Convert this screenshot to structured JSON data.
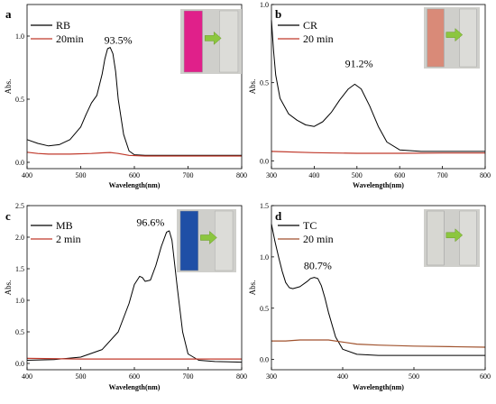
{
  "chart_data": [
    {
      "type": "line",
      "panel": "a",
      "xlabel": "Wavelength(nm)",
      "ylabel": "Abs.",
      "xlim": [
        400,
        800
      ],
      "ylim": [
        -0.05,
        1.25
      ],
      "xticks": [
        400,
        500,
        600,
        700,
        800
      ],
      "yticks": [
        0.0,
        0.5,
        1.0
      ],
      "yticklabels": [
        "0.0",
        "0.5",
        "1.0"
      ],
      "annotation": {
        "text": "93.5%",
        "x": 570,
        "y": 0.94
      },
      "legend_position": "top-left",
      "inset_image": "vial-photo-before-after",
      "colors": {
        "before": "#000000",
        "after": "#c0392b",
        "vial_before": "#e0208a",
        "arrow": "#8cc63f"
      },
      "series": [
        {
          "name": "RB",
          "color": "#000000",
          "x": [
            400,
            420,
            440,
            460,
            480,
            500,
            510,
            520,
            530,
            540,
            545,
            550,
            555,
            560,
            565,
            570,
            580,
            590,
            600,
            620,
            650,
            700,
            750,
            800
          ],
          "y": [
            0.18,
            0.15,
            0.13,
            0.14,
            0.18,
            0.28,
            0.38,
            0.47,
            0.53,
            0.7,
            0.82,
            0.9,
            0.91,
            0.86,
            0.72,
            0.5,
            0.22,
            0.09,
            0.06,
            0.055,
            0.055,
            0.055,
            0.055,
            0.055
          ]
        },
        {
          "name": "20min",
          "color": "#c0392b",
          "x": [
            400,
            420,
            440,
            480,
            520,
            540,
            555,
            570,
            590,
            620,
            700,
            800
          ],
          "y": [
            0.08,
            0.07,
            0.065,
            0.065,
            0.07,
            0.075,
            0.078,
            0.07,
            0.055,
            0.05,
            0.05,
            0.05
          ]
        }
      ]
    },
    {
      "type": "line",
      "panel": "b",
      "xlabel": "Wavelength(nm)",
      "ylabel": "Abs.",
      "xlim": [
        300,
        800
      ],
      "ylim": [
        -0.05,
        1.0
      ],
      "xticks": [
        300,
        400,
        500,
        600,
        700,
        800
      ],
      "yticks": [
        0.0,
        0.5,
        1.0
      ],
      "yticklabels": [
        "0.0",
        "0.5",
        "1.0"
      ],
      "annotation": {
        "text": "91.2%",
        "x": 505,
        "y": 0.6
      },
      "legend_position": "top-left",
      "inset_image": "vial-photo-before-after",
      "colors": {
        "before": "#000000",
        "after": "#c0392b",
        "vial_before": "#d98a78",
        "arrow": "#8cc63f"
      },
      "series": [
        {
          "name": "CR",
          "color": "#000000",
          "x": [
            300,
            305,
            310,
            320,
            340,
            360,
            380,
            400,
            420,
            440,
            460,
            480,
            495,
            510,
            530,
            550,
            570,
            600,
            650,
            700,
            800
          ],
          "y": [
            0.9,
            0.7,
            0.55,
            0.4,
            0.3,
            0.26,
            0.23,
            0.22,
            0.25,
            0.31,
            0.39,
            0.46,
            0.49,
            0.46,
            0.35,
            0.22,
            0.12,
            0.07,
            0.06,
            0.06,
            0.06
          ]
        },
        {
          "name": "20 min",
          "color": "#c0392b",
          "x": [
            300,
            400,
            500,
            600,
            700,
            800
          ],
          "y": [
            0.06,
            0.052,
            0.048,
            0.048,
            0.05,
            0.05
          ]
        }
      ]
    },
    {
      "type": "line",
      "panel": "c",
      "xlabel": "Wavelength(nm)",
      "ylabel": "Abs.",
      "xlim": [
        400,
        800
      ],
      "ylim": [
        -0.1,
        2.5
      ],
      "xticks": [
        400,
        500,
        600,
        700,
        800
      ],
      "yticks": [
        0.0,
        0.5,
        1.0,
        1.5,
        2.0,
        2.5
      ],
      "yticklabels": [
        "0.0",
        "0.5",
        "1.0",
        "1.5",
        "2.0",
        "2.5"
      ],
      "annotation": {
        "text": "96.6%",
        "x": 630,
        "y": 2.18
      },
      "legend_position": "top-left",
      "inset_image": "vial-photo-before-after",
      "colors": {
        "before": "#000000",
        "after": "#c0392b",
        "vial_before": "#1f4fa6",
        "arrow": "#8cc63f"
      },
      "series": [
        {
          "name": "MB",
          "color": "#000000",
          "x": [
            400,
            450,
            500,
            540,
            570,
            590,
            600,
            610,
            615,
            620,
            630,
            640,
            650,
            660,
            665,
            670,
            680,
            690,
            700,
            720,
            750,
            800
          ],
          "y": [
            0.05,
            0.06,
            0.1,
            0.22,
            0.5,
            0.95,
            1.25,
            1.38,
            1.36,
            1.3,
            1.32,
            1.55,
            1.85,
            2.08,
            2.1,
            1.95,
            1.2,
            0.5,
            0.15,
            0.05,
            0.03,
            0.02
          ]
        },
        {
          "name": "2 min",
          "color": "#c0392b",
          "x": [
            400,
            500,
            600,
            700,
            800
          ],
          "y": [
            0.08,
            0.07,
            0.07,
            0.07,
            0.07
          ]
        }
      ]
    },
    {
      "type": "line",
      "panel": "d",
      "xlabel": "Wavelength(nm)",
      "ylabel": "Abs.",
      "xlim": [
        300,
        600
      ],
      "ylim": [
        -0.1,
        1.5
      ],
      "xticks": [
        300,
        400,
        500,
        600
      ],
      "yticks": [
        0.0,
        0.5,
        1.0,
        1.5
      ],
      "yticklabels": [
        "0.0",
        "0.5",
        "1.0",
        "1.5"
      ],
      "annotation": {
        "text": "80.7%",
        "x": 365,
        "y": 0.88
      },
      "legend_position": "top-left",
      "inset_image": "vial-photo-before-after",
      "colors": {
        "before": "#000000",
        "after": "#a0522d",
        "vial_before": "#d7d7d2",
        "arrow": "#8cc63f"
      },
      "series": [
        {
          "name": "TC",
          "color": "#000000",
          "x": [
            300,
            305,
            310,
            315,
            320,
            325,
            330,
            340,
            350,
            355,
            360,
            365,
            370,
            375,
            380,
            390,
            400,
            420,
            450,
            500,
            550,
            600
          ],
          "y": [
            1.32,
            1.15,
            1.0,
            0.86,
            0.75,
            0.7,
            0.69,
            0.71,
            0.76,
            0.79,
            0.8,
            0.79,
            0.72,
            0.6,
            0.46,
            0.22,
            0.1,
            0.05,
            0.04,
            0.04,
            0.04,
            0.04
          ]
        },
        {
          "name": "20 min",
          "color": "#a0522d",
          "x": [
            300,
            320,
            340,
            360,
            380,
            400,
            420,
            450,
            500,
            550,
            600
          ],
          "y": [
            0.18,
            0.18,
            0.19,
            0.19,
            0.19,
            0.17,
            0.15,
            0.14,
            0.13,
            0.125,
            0.12
          ]
        }
      ]
    }
  ]
}
